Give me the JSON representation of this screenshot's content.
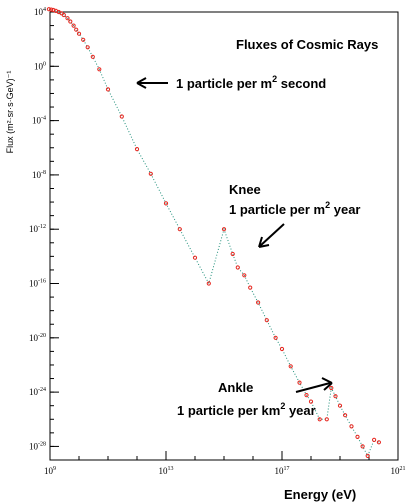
{
  "chart_data": {
    "type": "scatter",
    "title": "Fluxes of Cosmic Rays",
    "xlabel": "Energy (eV)",
    "ylabel": "Flux (m²·sr·s·GeV)⁻¹",
    "x_scale": "log",
    "y_scale": "log",
    "xlim": [
      1000000000.0,
      1e+21
    ],
    "ylim": [
      1e-29,
      10000.0
    ],
    "x_ticks": [
      {
        "base": "10",
        "exp": "9",
        "value": 1000000000.0
      },
      {
        "base": "10",
        "exp": "13",
        "value": 10000000000000.0
      },
      {
        "base": "10",
        "exp": "17",
        "value": 1e+17
      },
      {
        "base": "10",
        "exp": "21",
        "value": 1e+21
      }
    ],
    "y_ticks": [
      {
        "base": "10",
        "exp": "4",
        "value": 10000.0
      },
      {
        "base": "10",
        "exp": "0",
        "value": 1.0
      },
      {
        "base": "10",
        "exp": "-4",
        "value": 0.0001
      },
      {
        "base": "10",
        "exp": "-8",
        "value": 1e-08
      },
      {
        "base": "10",
        "exp": "-12",
        "value": 1e-12
      },
      {
        "base": "10",
        "exp": "-16",
        "value": 1e-16
      },
      {
        "base": "10",
        "exp": "-20",
        "value": 1e-20
      },
      {
        "base": "10",
        "exp": "-24",
        "value": 1e-24
      },
      {
        "base": "10",
        "exp": "-28",
        "value": 1e-28
      }
    ],
    "series": [
      {
        "color": "#e8261f",
        "x": [
          920000000.0,
          1100000000.0,
          1300000000.0,
          1600000000.0,
          2000000000.0,
          2500000000.0,
          3000000000.0,
          4000000000.0,
          5000000000.0,
          6500000000.0,
          8000000000.0,
          10000000000.0,
          14000000000.0,
          20000000000.0,
          30000000000.0,
          50000000000.0,
          100000000000.0,
          300000000000.0,
          1000000000000.0,
          3000000000000.0,
          10000000000000.0,
          30000000000000.0,
          100000000000000.0,
          300000000000000.0,
          1000000000000000.0,
          2000000000000000.0,
          3000000000000000.0,
          5000000000000000.0,
          8000000000000000.0,
          1.5e+16,
          3e+16,
          6e+16,
          1e+17,
          2e+17,
          4e+17,
          7e+17,
          1e+18,
          2e+18,
          3.5e+18,
          5e+18,
          7e+18,
          1e+19,
          1.5e+19,
          2.5e+19,
          4e+19,
          6e+19,
          9e+19,
          1.5e+20,
          2.2e+20
        ],
        "y": [
          16000.0,
          15000.0,
          14000.0,
          12000.0,
          10000.0,
          8000.0,
          6000.0,
          3500.0,
          2000.0,
          1000.0,
          500.0,
          250.0,
          90.0,
          25.0,
          5.0,
          0.6,
          0.02,
          0.0002,
          8e-07,
          1.2e-08,
          8e-11,
          1e-12,
          8e-15,
          1e-16,
          1e-12,
          1.5e-14,
          1.5e-15,
          4e-16,
          5e-17,
          4e-18,
          2e-19,
          1e-20,
          1.5e-21,
          8e-23,
          5e-24,
          6e-25,
          2e-25,
          1e-26,
          1e-26,
          2e-24,
          5e-25,
          1e-25,
          2e-26,
          3e-27,
          5e-28,
          1e-28,
          2e-29,
          3e-28,
          2e-28
        ]
      }
    ],
    "grid": false,
    "legend": "none"
  },
  "annotations": {
    "one_per_m2_second": {
      "main": "1 particle per m",
      "sup": "2",
      "tail": " second"
    },
    "knee_title": "Knee",
    "knee_line": {
      "main": "1 particle per m",
      "sup": "2",
      "tail": " year"
    },
    "ankle_title": "Ankle",
    "ankle_line": {
      "main": "1 particle per km",
      "sup": "2",
      "tail": " year"
    }
  },
  "colors": {
    "data": "#e8261f",
    "trend": "#1f8f7a",
    "axis": "#000000",
    "background": "#ffffff"
  }
}
